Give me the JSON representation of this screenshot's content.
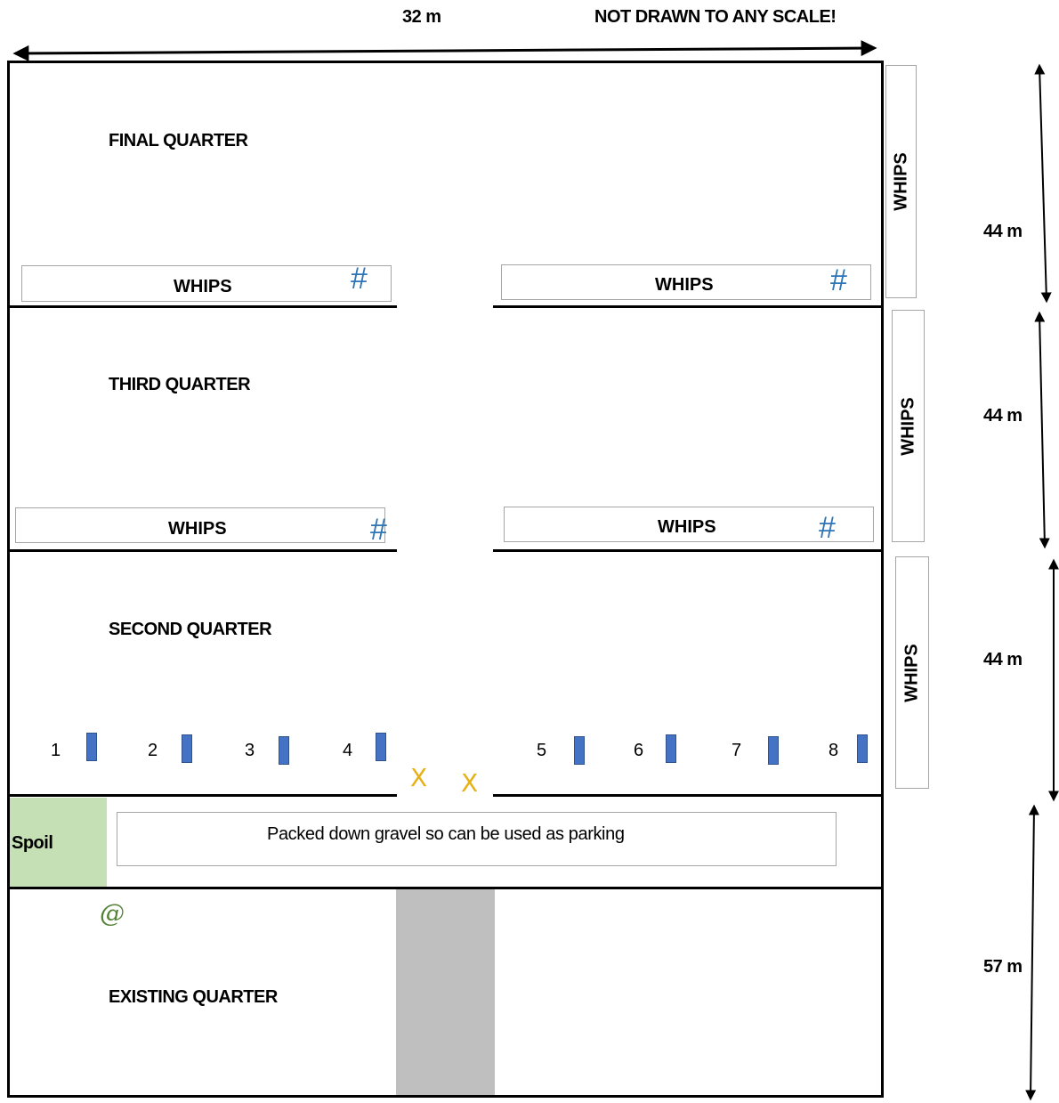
{
  "header": {
    "width_label": "32 m",
    "scale_note": "NOT DRAWN TO ANY SCALE!"
  },
  "quarters": {
    "final": "FINAL QUARTER",
    "third": "THIRD QUARTER",
    "second": "SECOND QUARTER",
    "existing": "EXISTING QUARTER"
  },
  "whips_label": "WHIPS",
  "hash_symbol": "#",
  "plots": [
    "1",
    "2",
    "3",
    "4",
    "5",
    "6",
    "7",
    "8"
  ],
  "gate_symbol": "X",
  "spoil_label": "Spoil",
  "parking_label": "Packed down gravel so can be used as parking",
  "at_symbol": "@",
  "dimensions": {
    "d1": "44 m",
    "d2": "44 m",
    "d3": "44 m",
    "d4": "57 m"
  },
  "colors": {
    "hash": "#2e75b6",
    "plot": "#4472c4",
    "gate": "#e5b117",
    "spoil": "#c5e0b4",
    "path": "#bfbfbf",
    "at": "#548235"
  }
}
